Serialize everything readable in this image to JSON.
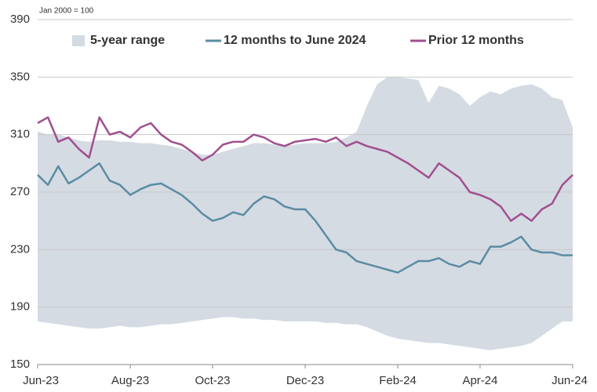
{
  "chart_data": {
    "type": "line",
    "subtitle": "Jan 2000 = 100",
    "categories": [
      "Jun-23",
      null,
      null,
      null,
      null,
      null,
      null,
      null,
      null,
      "Aug-23",
      null,
      null,
      null,
      null,
      null,
      null,
      null,
      "Oct-23",
      null,
      null,
      null,
      null,
      null,
      null,
      null,
      null,
      "Dec-23",
      null,
      null,
      null,
      null,
      null,
      null,
      null,
      null,
      "Feb-24",
      null,
      null,
      null,
      null,
      null,
      null,
      null,
      "Apr-24",
      null,
      null,
      null,
      null,
      null,
      null,
      null,
      null,
      "Jun-24"
    ],
    "ylim": [
      150,
      390
    ],
    "yticks": [
      150,
      190,
      230,
      270,
      310,
      350,
      390
    ],
    "grid": true,
    "legend": "top",
    "series": [
      {
        "name": "5-year range",
        "type": "range",
        "color": "#d5dbe3",
        "values": [
          312,
          310,
          310,
          308,
          306,
          305,
          306,
          306,
          305,
          305,
          304,
          304,
          303,
          302,
          300,
          298,
          296,
          296,
          298,
          300,
          302,
          304,
          304,
          303,
          302,
          303,
          304,
          304,
          304,
          305,
          308,
          312,
          330,
          345,
          350,
          350,
          349,
          348,
          332,
          344,
          342,
          338,
          330,
          336,
          340,
          338,
          342,
          344,
          345,
          342,
          336,
          334,
          315
        ],
        "low": [
          180,
          179,
          178,
          177,
          176,
          175,
          175,
          176,
          177,
          176,
          176,
          177,
          178,
          178,
          179,
          180,
          181,
          182,
          183,
          183,
          182,
          182,
          181,
          181,
          180,
          180,
          180,
          180,
          179,
          179,
          178,
          178,
          176,
          173,
          170,
          168,
          167,
          166,
          165,
          165,
          164,
          163,
          162,
          161,
          160,
          161,
          162,
          163,
          165,
          170,
          175,
          180,
          180
        ]
      },
      {
        "name": "12 months to June 2024",
        "color": "#5b8ca3",
        "values": [
          282,
          275,
          288,
          276,
          280,
          285,
          290,
          278,
          275,
          268,
          272,
          275,
          276,
          272,
          268,
          262,
          255,
          250,
          252,
          256,
          254,
          262,
          267,
          265,
          260,
          258,
          258,
          250,
          240,
          230,
          228,
          222,
          220,
          218,
          216,
          214,
          218,
          222,
          222,
          224,
          220,
          218,
          222,
          220,
          232,
          232,
          235,
          239,
          230,
          228,
          228,
          226,
          226
        ]
      },
      {
        "name": "Prior 12 months",
        "color": "#a0508f",
        "values": [
          318,
          322,
          305,
          308,
          300,
          294,
          322,
          310,
          312,
          308,
          315,
          318,
          310,
          305,
          303,
          298,
          292,
          296,
          303,
          305,
          305,
          310,
          308,
          304,
          302,
          305,
          306,
          307,
          305,
          308,
          302,
          305,
          302,
          300,
          298,
          294,
          290,
          285,
          280,
          290,
          285,
          280,
          270,
          268,
          265,
          260,
          250,
          255,
          250,
          258,
          262,
          275,
          282
        ]
      }
    ]
  }
}
